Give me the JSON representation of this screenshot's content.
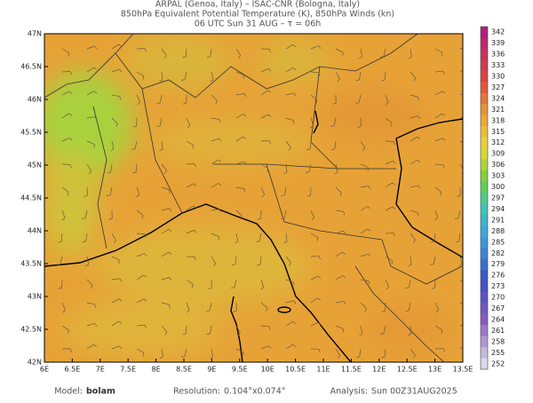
{
  "header": {
    "line1": "ARPAL (Genoa, Italy)  –  ISAC-CNR (Bologna, Italy)",
    "line2": "850hPa Equivalent Potential Temperature (K), 850hPa Winds (kn)",
    "line3": "06 UTC Sun 31 AUG  –  τ = 06h"
  },
  "map": {
    "lonlim": [
      6,
      13.5
    ],
    "latlim": [
      42,
      47
    ],
    "lon_ticks": [
      {
        "value": 6,
        "label": "6E"
      },
      {
        "value": 6.5,
        "label": "6.5E"
      },
      {
        "value": 7,
        "label": "7E"
      },
      {
        "value": 7.5,
        "label": "7.5E"
      },
      {
        "value": 8,
        "label": "8E"
      },
      {
        "value": 8.5,
        "label": "8.5E"
      },
      {
        "value": 9,
        "label": "9E"
      },
      {
        "value": 9.5,
        "label": "9.5E"
      },
      {
        "value": 10,
        "label": "10E"
      },
      {
        "value": 10.5,
        "label": "10.5E"
      },
      {
        "value": 11,
        "label": "11E"
      },
      {
        "value": 11.5,
        "label": "11.5E"
      },
      {
        "value": 12,
        "label": "12E"
      },
      {
        "value": 12.5,
        "label": "12.5E"
      },
      {
        "value": 13,
        "label": "13E"
      },
      {
        "value": 13.5,
        "label": "13.5E"
      }
    ],
    "lat_ticks": [
      {
        "value": 47,
        "label": "47N"
      },
      {
        "value": 46.5,
        "label": "46.5N"
      },
      {
        "value": 46,
        "label": "46N"
      },
      {
        "value": 45.5,
        "label": "45.5N"
      },
      {
        "value": 45,
        "label": "45N"
      },
      {
        "value": 44.5,
        "label": "44.5N"
      },
      {
        "value": 44,
        "label": "44N"
      },
      {
        "value": 43.5,
        "label": "43.5N"
      },
      {
        "value": 43,
        "label": "43N"
      },
      {
        "value": 42.5,
        "label": "42.5N"
      },
      {
        "value": 42,
        "label": "42N"
      }
    ]
  },
  "colorbar": {
    "values": [
      342,
      339,
      336,
      333,
      330,
      327,
      324,
      321,
      318,
      315,
      312,
      309,
      306,
      303,
      300,
      297,
      294,
      291,
      288,
      285,
      282,
      279,
      276,
      273,
      270,
      267,
      264,
      261,
      258,
      255,
      252
    ]
  },
  "footer": {
    "model_label": "Model:",
    "model": "bolam",
    "resolution_label": "Resolution:",
    "resolution": "0.104°x0.074°",
    "analysis_label": "Analysis:",
    "analysis": "Sun 00Z31AUG2025"
  }
}
